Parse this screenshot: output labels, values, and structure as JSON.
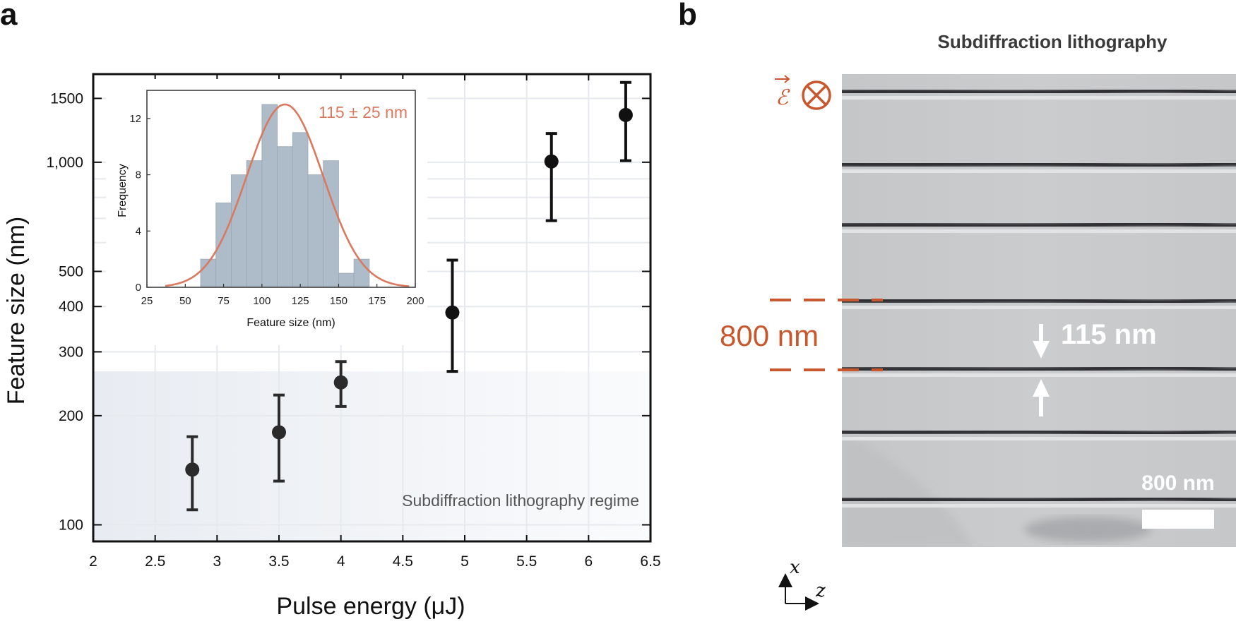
{
  "panels": {
    "a_label": "a",
    "b_label": "b"
  },
  "chart_data": [
    {
      "type": "scatter",
      "xlabel": "Pulse energy (μJ)",
      "ylabel": "Feature size (nm)",
      "xlim": [
        2,
        6.5
      ],
      "ylim": [
        90,
        1750
      ],
      "yscale": "log",
      "grid": true,
      "x_ticks": [
        "2",
        "2.5",
        "3",
        "3.5",
        "4",
        "4.5",
        "5",
        "5.5",
        "6",
        "6.5"
      ],
      "y_ticks": [
        {
          "value": 100,
          "label": "100"
        },
        {
          "value": 200,
          "label": "200"
        },
        {
          "value": 300,
          "label": "300"
        },
        {
          "value": 400,
          "label": "400"
        },
        {
          "value": 500,
          "label": "500"
        },
        {
          "value": 1000,
          "label": "1,000"
        },
        {
          "value": 1500,
          "label": "1500"
        }
      ],
      "region": {
        "label": "Subdiffraction lithography regime",
        "y_below": 265,
        "color": "#eef1f5"
      },
      "points": [
        {
          "x": 2.8,
          "y": 142,
          "y_low": 110,
          "y_high": 175,
          "color": "#2b2b2b"
        },
        {
          "x": 3.5,
          "y": 180,
          "y_low": 132,
          "y_high": 228,
          "color": "#2b2b2b"
        },
        {
          "x": 4.0,
          "y": 247,
          "y_low": 212,
          "y_high": 282,
          "color": "#2b2b2b"
        },
        {
          "x": 4.9,
          "y": 385,
          "y_low": 265,
          "y_high": 537,
          "color": "#111111"
        },
        {
          "x": 5.7,
          "y": 1005,
          "y_low": 690,
          "y_high": 1200,
          "color": "#111111"
        },
        {
          "x": 6.3,
          "y": 1350,
          "y_low": 1010,
          "y_high": 1660,
          "color": "#111111"
        }
      ]
    },
    {
      "type": "bar",
      "subtype": "histogram",
      "xlabel": "Feature size  (nm)",
      "ylabel": "Frequency",
      "xlim": [
        25,
        200
      ],
      "ylim": [
        0,
        14
      ],
      "x_ticks": [
        "25",
        "50",
        "75",
        "100",
        "125",
        "150",
        "175",
        "200"
      ],
      "y_ticks": [
        "0",
        "4",
        "8",
        "12"
      ],
      "bin_width": 10,
      "bins": [
        {
          "start": 60,
          "count": 2
        },
        {
          "start": 70,
          "count": 6
        },
        {
          "start": 80,
          "count": 8
        },
        {
          "start": 90,
          "count": 9
        },
        {
          "start": 100,
          "count": 13
        },
        {
          "start": 110,
          "count": 10
        },
        {
          "start": 120,
          "count": 11
        },
        {
          "start": 130,
          "count": 8
        },
        {
          "start": 140,
          "count": 9
        },
        {
          "start": 150,
          "count": 1
        },
        {
          "start": 160,
          "count": 2
        }
      ],
      "fit": {
        "type": "gaussian",
        "mean": 115,
        "sd": 25,
        "peak": 13,
        "label": "115 ± 25 nm",
        "color": "#d9795f"
      },
      "bar_color": "#aebbc8"
    }
  ],
  "sem_image": {
    "title": "Subdiffraction lithography",
    "field_symbol": "ℰ",
    "field_direction_symbol": "⊗",
    "period_label": "800 nm",
    "linewidth_label": "115 nm",
    "scalebar_label": "800 nm",
    "axis_x": "x",
    "axis_z": "z",
    "annotation_color": "#c8572d"
  }
}
